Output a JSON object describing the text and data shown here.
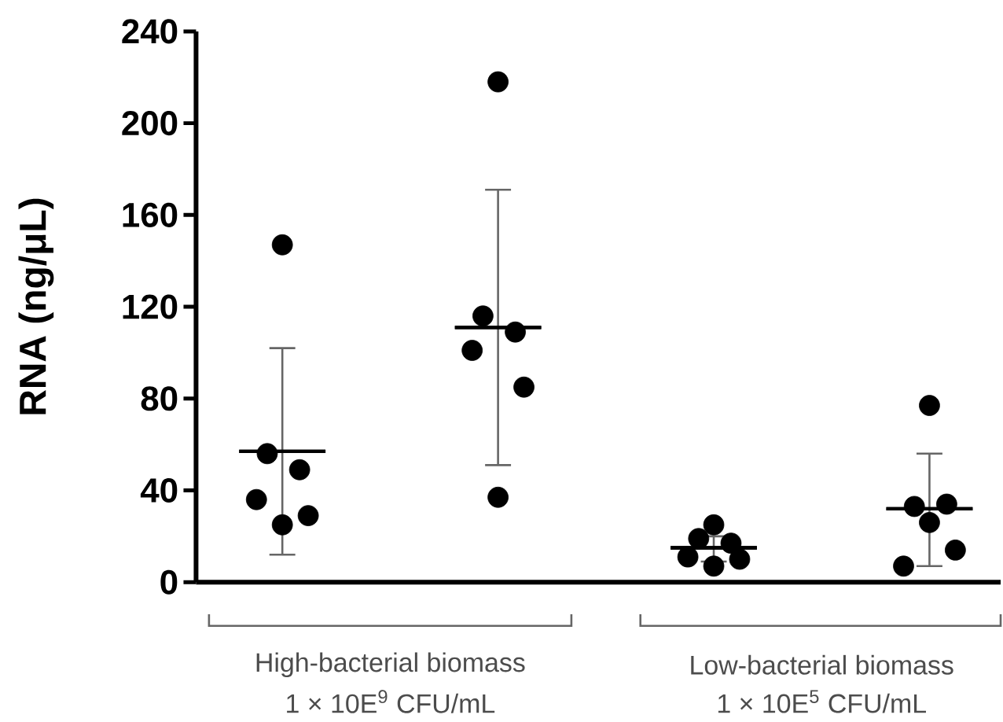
{
  "chart_data": {
    "type": "scatter",
    "ylabel": "RNA (ng/μL)",
    "categories": [
      null,
      null,
      null,
      null
    ],
    "ylim": [
      0,
      240
    ],
    "yticks": [
      0,
      40,
      80,
      120,
      160,
      200,
      240
    ],
    "tick_labels": "y",
    "grid": false,
    "marker": "circle",
    "series": [
      {
        "color": "#000000",
        "values": [
          147,
          218,
          25,
          77
        ]
      },
      {
        "color": "#000000",
        "values": [
          56,
          116,
          19,
          33
        ]
      },
      {
        "color": "#000000",
        "values": [
          49,
          109,
          17,
          34
        ]
      },
      {
        "color": "#000000",
        "values": [
          36,
          101,
          11,
          7
        ]
      },
      {
        "color": "#000000",
        "values": [
          29,
          85,
          10,
          14
        ]
      },
      {
        "color": "#000000",
        "values": [
          25,
          37,
          7,
          26
        ]
      },
      {
        "type": "box",
        "color": "#000000",
        "boxes": [
          {
            "low": 12,
            "q1": 57,
            "median": 57,
            "q3": 57,
            "high": 102
          },
          {
            "low": 51,
            "q1": 111,
            "median": 111,
            "q3": 111,
            "high": 171
          },
          {
            "low": 9,
            "q1": 15,
            "median": 15,
            "q3": 15,
            "high": 20
          },
          {
            "low": 7,
            "q1": 32,
            "median": 32,
            "q3": 32,
            "high": 56
          }
        ]
      }
    ],
    "annotations": [
      "High-bacterial biomass",
      "1 × 10E$^{9}$ CFU/mL",
      "Low-bacterial biomass",
      "1 × 10E$^{5}$ CFU/mL"
    ]
  }
}
